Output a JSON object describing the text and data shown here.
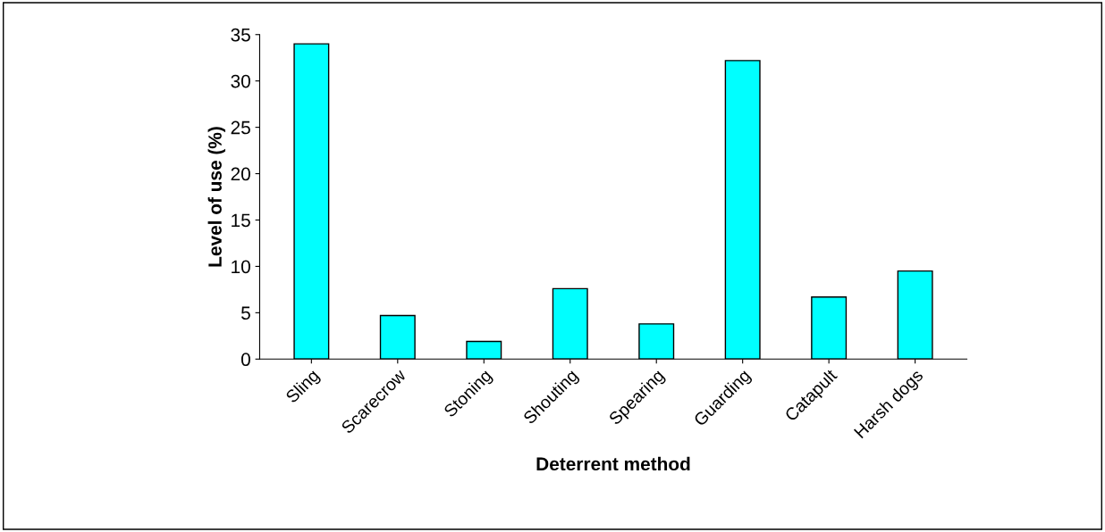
{
  "chart_data": {
    "type": "bar",
    "xlabel": "Deterrent method",
    "ylabel": "Level of use (%)",
    "categories": [
      "Sling",
      "Scarecrow",
      "Stoning",
      "Shouting",
      "Spearing",
      "Guarding",
      "Catapult",
      "Harsh dogs"
    ],
    "values": [
      34,
      4.7,
      1.9,
      7.6,
      3.8,
      32.2,
      6.7,
      9.5
    ],
    "color": "#00ffff",
    "ylim": [
      0,
      35
    ],
    "yticks": [
      0,
      5,
      10,
      15,
      20,
      25,
      30,
      35
    ],
    "grid": false,
    "legend": false
  }
}
